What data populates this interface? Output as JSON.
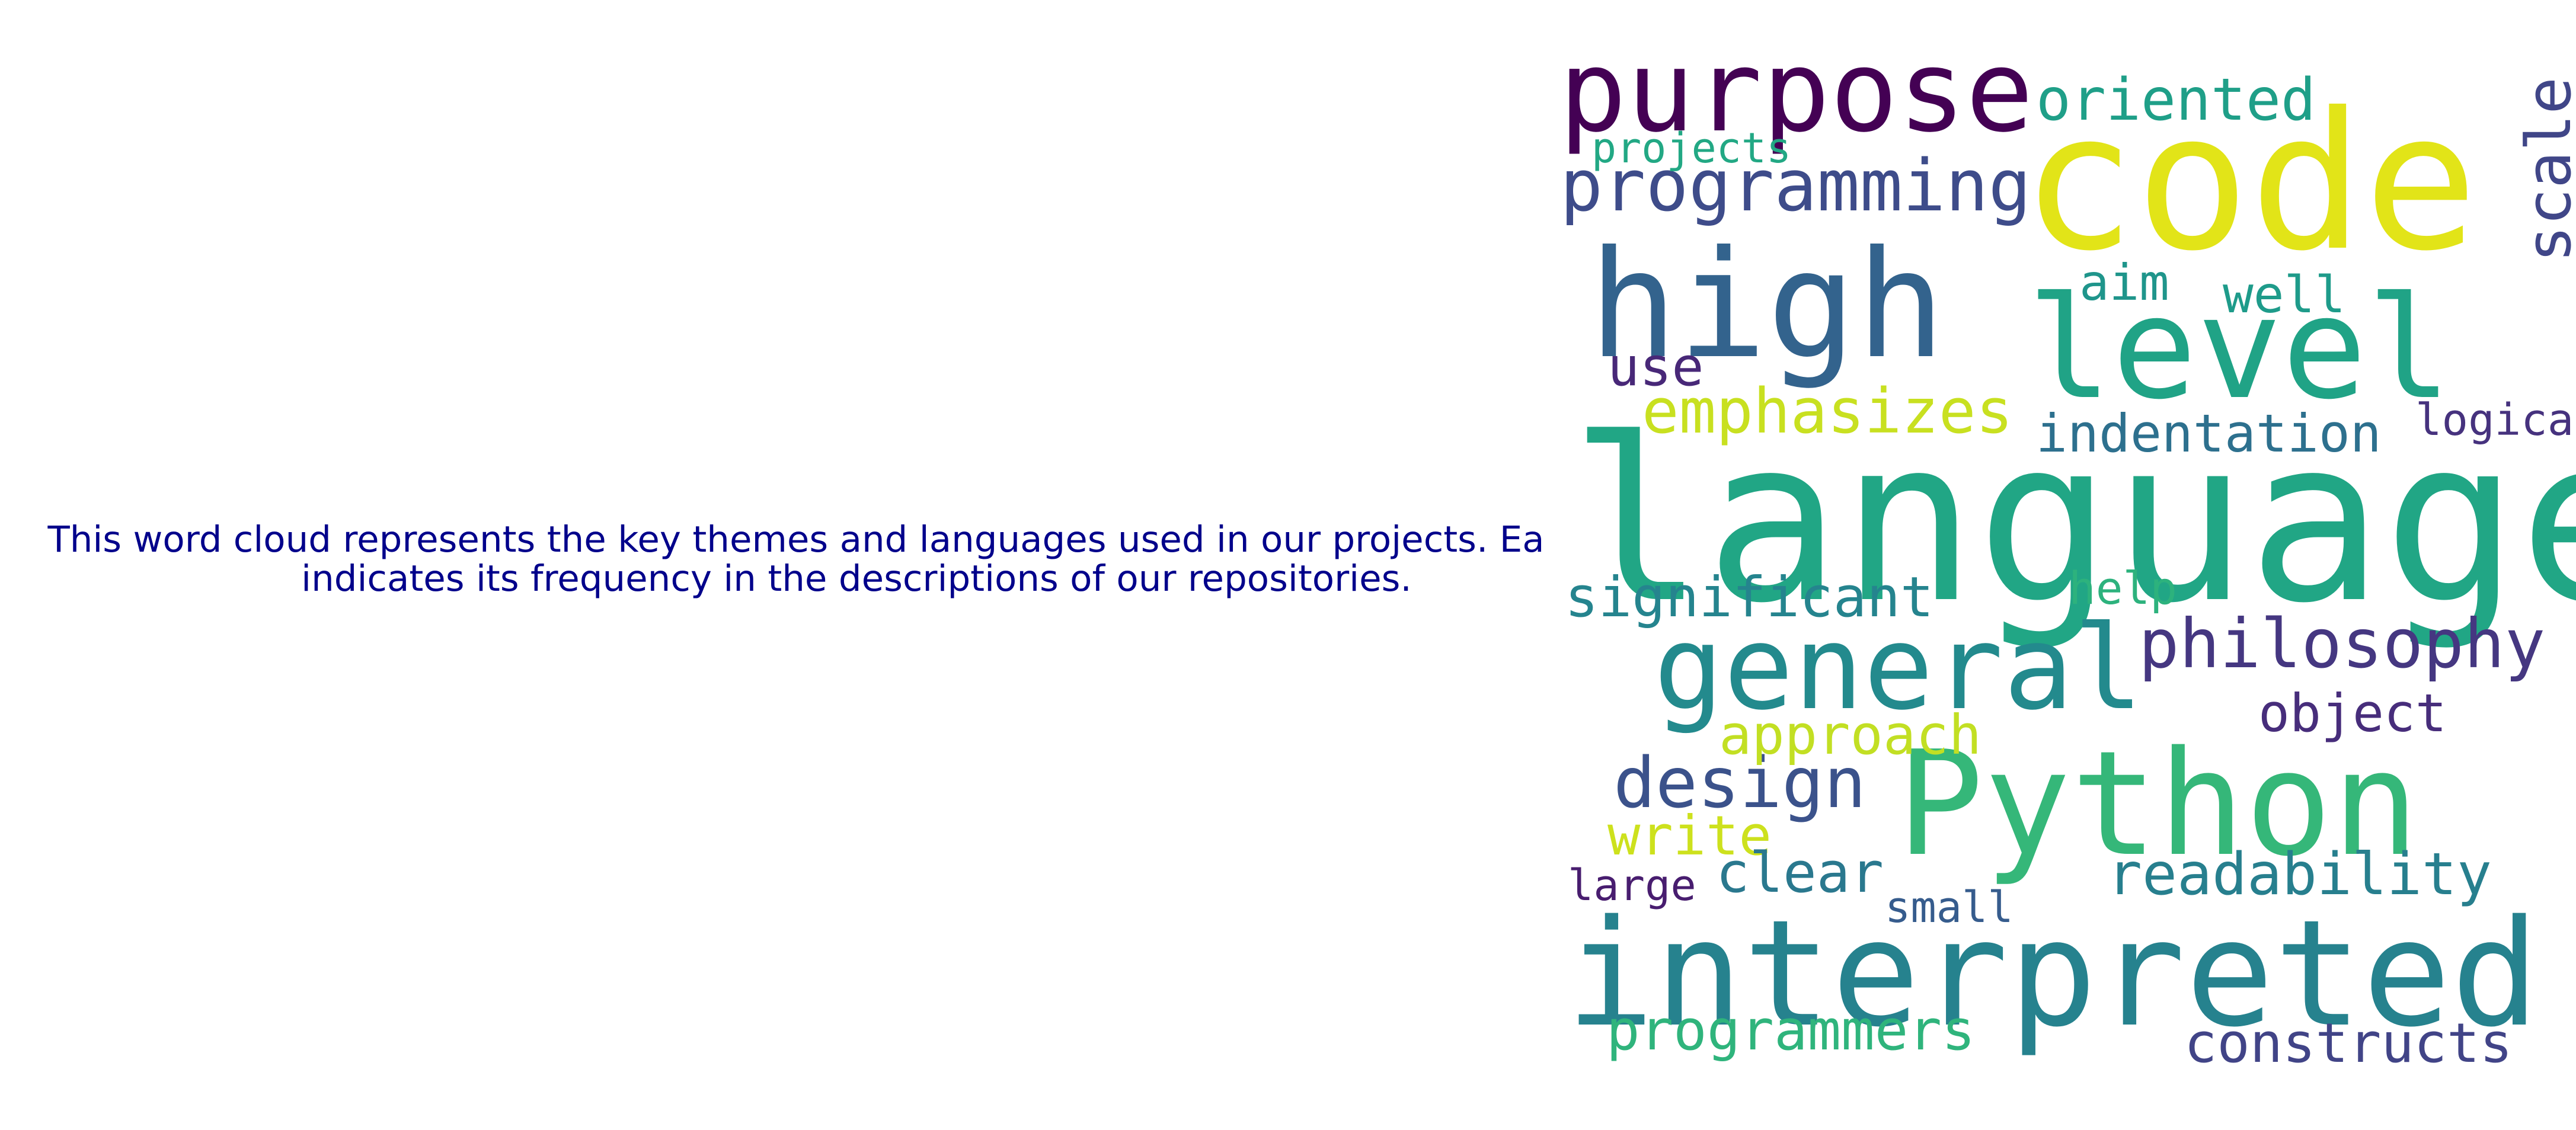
{
  "caption": {
    "line1": "This word cloud represents the key themes and languages used in our projects. Each wor",
    "line2": "indicates its frequency in the descriptions of our repositories."
  },
  "words": [
    {
      "text": "language",
      "color": "#21a685"
    },
    {
      "text": "code",
      "color": "#e2e418"
    },
    {
      "text": "interpreted",
      "color": "#26828e"
    },
    {
      "text": "Python",
      "color": "#35b779"
    },
    {
      "text": "high",
      "color": "#33638d"
    },
    {
      "text": "level",
      "color": "#20a386"
    },
    {
      "text": "general",
      "color": "#238a8d"
    },
    {
      "text": "purpose",
      "color": "#440154"
    },
    {
      "text": "programming",
      "color": "#3e4c8a"
    },
    {
      "text": "oriented",
      "color": "#1f9f88"
    },
    {
      "text": "philosophy",
      "color": "#453781"
    },
    {
      "text": "design",
      "color": "#3b528b"
    },
    {
      "text": "emphasizes",
      "color": "#c8e020"
    },
    {
      "text": "readability",
      "color": "#277f8e"
    },
    {
      "text": "significant",
      "color": "#25848e"
    },
    {
      "text": "indentation",
      "color": "#2d708e"
    },
    {
      "text": "constructs",
      "color": "#414487"
    },
    {
      "text": "programmers",
      "color": "#2fb47c"
    },
    {
      "text": "object",
      "color": "#472d7b"
    },
    {
      "text": "approach",
      "color": "#404688"
    },
    {
      "text": "write",
      "color": "#c2df23"
    },
    {
      "text": "clear",
      "color": "#cde11d"
    },
    {
      "text": "use",
      "color": "#2a788e"
    },
    {
      "text": "well",
      "color": "#482878"
    },
    {
      "text": "aim",
      "color": "#1e9b8a"
    },
    {
      "text": "help",
      "color": "#1f958b"
    },
    {
      "text": "logical",
      "color": "#2db27d"
    },
    {
      "text": "large",
      "color": "#46327e"
    },
    {
      "text": "small",
      "color": "#481d6f"
    },
    {
      "text": "projects",
      "color": "#365c8d"
    },
    {
      "text": "scale",
      "color": "#22a884"
    }
  ]
}
